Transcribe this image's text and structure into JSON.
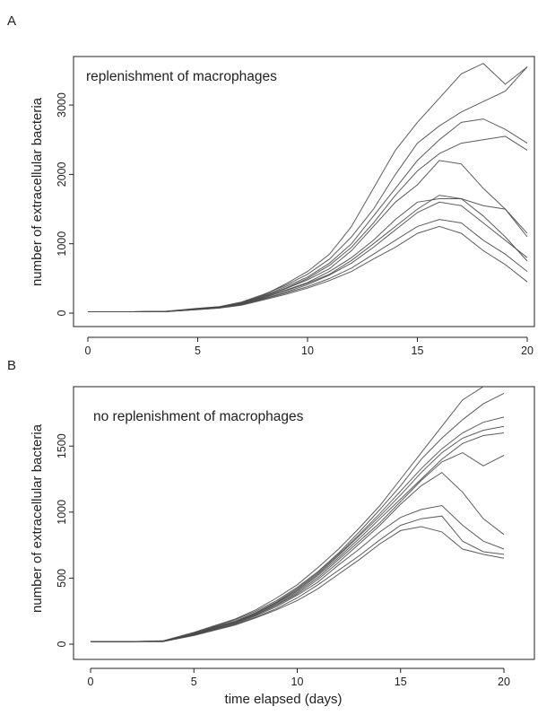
{
  "figure": {
    "xlabel": "time elapsed (days)"
  },
  "chart_data": [
    {
      "type": "line",
      "panel_label": "A",
      "annotation": "replenishment of macrophages",
      "title": "",
      "xlabel": "",
      "ylabel": "number of extracellular bacteria",
      "xlim": [
        0,
        20
      ],
      "ylim": [
        0,
        3700
      ],
      "xticks": [
        0,
        5,
        10,
        15,
        20
      ],
      "yticks": [
        0,
        1000,
        2000,
        3000
      ],
      "grid": false,
      "legend": "none",
      "x": [
        0,
        2,
        3.5,
        5,
        6,
        7,
        8,
        9,
        10,
        11,
        12,
        13,
        14,
        15,
        16,
        17,
        18,
        19,
        20
      ],
      "series": [
        {
          "values": [
            20,
            20,
            22,
            60,
            90,
            150,
            260,
            420,
            600,
            850,
            1250,
            1800,
            2350,
            2750,
            3100,
            3450,
            3600,
            3300,
            3550
          ]
        },
        {
          "values": [
            20,
            20,
            24,
            70,
            95,
            160,
            270,
            400,
            560,
            780,
            1100,
            1500,
            2000,
            2450,
            2700,
            2900,
            3050,
            3200,
            3550
          ]
        },
        {
          "values": [
            20,
            20,
            25,
            65,
            90,
            150,
            250,
            380,
            520,
            720,
            1000,
            1400,
            1800,
            2200,
            2500,
            2750,
            2800,
            2650,
            2450
          ]
        },
        {
          "values": [
            20,
            20,
            22,
            60,
            88,
            140,
            240,
            360,
            500,
            690,
            950,
            1300,
            1700,
            2050,
            2300,
            2450,
            2500,
            2550,
            2350
          ]
        },
        {
          "values": [
            20,
            20,
            23,
            58,
            85,
            140,
            230,
            350,
            480,
            640,
            900,
            1250,
            1600,
            1850,
            2200,
            2150,
            1800,
            1500,
            1150
          ]
        },
        {
          "values": [
            20,
            20,
            21,
            55,
            80,
            130,
            220,
            330,
            440,
            600,
            800,
            1050,
            1350,
            1600,
            1650,
            1650,
            1550,
            1500,
            1100
          ]
        },
        {
          "values": [
            20,
            20,
            22,
            57,
            82,
            135,
            225,
            320,
            430,
            560,
            760,
            1000,
            1250,
            1500,
            1700,
            1650,
            1400,
            1100,
            750
          ]
        },
        {
          "values": [
            20,
            20,
            22,
            55,
            80,
            125,
            210,
            300,
            410,
            550,
            720,
            950,
            1200,
            1450,
            1600,
            1550,
            1300,
            1050,
            800
          ]
        },
        {
          "values": [
            20,
            20,
            21,
            52,
            75,
            120,
            200,
            290,
            380,
            500,
            650,
            850,
            1050,
            1250,
            1350,
            1300,
            1050,
            850,
            600
          ]
        },
        {
          "values": [
            20,
            20,
            20,
            50,
            72,
            115,
            190,
            270,
            360,
            470,
            600,
            780,
            950,
            1150,
            1250,
            1150,
            900,
            700,
            450
          ]
        }
      ]
    },
    {
      "type": "line",
      "panel_label": "B",
      "annotation": "no replenishment of macrophages",
      "title": "",
      "xlabel": "time elapsed (days)",
      "ylabel": "number of extracellular bacteria",
      "xlim": [
        0,
        20
      ],
      "ylim": [
        0,
        1950
      ],
      "xticks": [
        0,
        5,
        10,
        15,
        20
      ],
      "yticks": [
        0,
        500,
        1000,
        1500
      ],
      "grid": false,
      "legend": "none",
      "x": [
        0,
        2,
        3.5,
        5,
        6,
        7,
        8,
        9,
        10,
        11,
        12,
        13,
        14,
        15,
        16,
        17,
        18,
        19,
        20
      ],
      "series": [
        {
          "values": [
            20,
            20,
            25,
            90,
            140,
            190,
            260,
            350,
            450,
            580,
            720,
            880,
            1050,
            1250,
            1450,
            1650,
            1850,
            1950,
            1980
          ]
        },
        {
          "values": [
            20,
            20,
            24,
            85,
            135,
            185,
            250,
            330,
            430,
            550,
            690,
            850,
            1020,
            1200,
            1400,
            1560,
            1700,
            1820,
            1900
          ]
        },
        {
          "values": [
            20,
            20,
            23,
            82,
            130,
            175,
            240,
            320,
            420,
            540,
            680,
            830,
            990,
            1160,
            1330,
            1480,
            1600,
            1680,
            1720
          ]
        },
        {
          "values": [
            20,
            20,
            22,
            80,
            128,
            170,
            235,
            315,
            410,
            530,
            670,
            820,
            970,
            1130,
            1300,
            1450,
            1560,
            1620,
            1650
          ]
        },
        {
          "values": [
            20,
            20,
            22,
            78,
            125,
            168,
            230,
            310,
            400,
            520,
            655,
            800,
            950,
            1100,
            1250,
            1400,
            1520,
            1580,
            1600
          ]
        },
        {
          "values": [
            20,
            20,
            21,
            75,
            120,
            165,
            225,
            300,
            390,
            505,
            640,
            780,
            920,
            1080,
            1240,
            1380,
            1450,
            1350,
            1430
          ]
        },
        {
          "values": [
            20,
            20,
            21,
            72,
            118,
            160,
            220,
            295,
            380,
            490,
            620,
            760,
            900,
            1060,
            1200,
            1300,
            1150,
            950,
            830
          ]
        },
        {
          "values": [
            20,
            20,
            20,
            70,
            112,
            155,
            215,
            285,
            370,
            470,
            600,
            720,
            850,
            960,
            1020,
            1050,
            900,
            780,
            720
          ]
        },
        {
          "values": [
            20,
            20,
            20,
            68,
            110,
            150,
            205,
            270,
            350,
            450,
            560,
            670,
            790,
            900,
            950,
            970,
            780,
            700,
            680
          ]
        },
        {
          "values": [
            20,
            20,
            20,
            65,
            105,
            145,
            200,
            260,
            330,
            420,
            530,
            640,
            760,
            860,
            890,
            850,
            720,
            680,
            650
          ]
        }
      ]
    }
  ]
}
